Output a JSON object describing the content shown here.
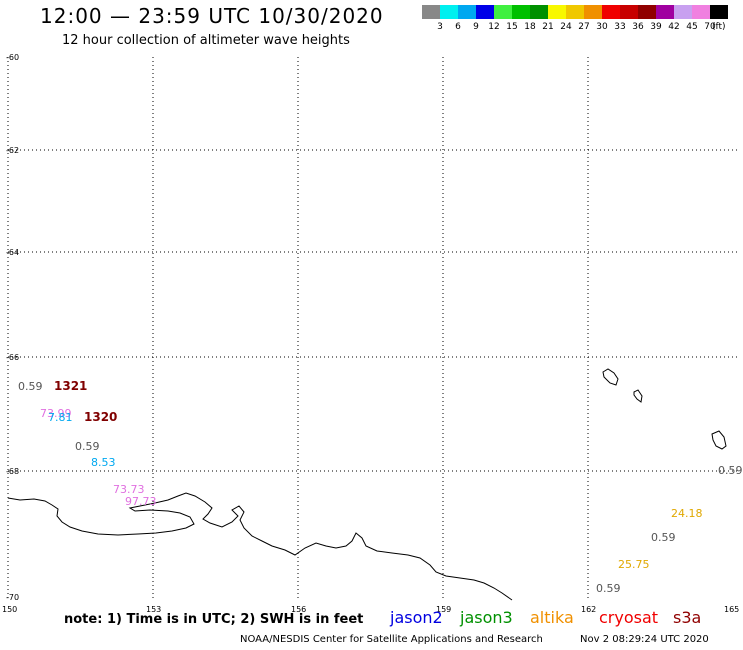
{
  "title": "12:00 — 23:59 UTC 10/30/2020",
  "subtitle": "12 hour collection of altimeter wave heights",
  "legend": {
    "unit": "(ft)",
    "swatches": [
      {
        "label": "3",
        "color": "#888888"
      },
      {
        "label": "6",
        "color": "#00f0f0"
      },
      {
        "label": "9",
        "color": "#00a8f0"
      },
      {
        "label": "12",
        "color": "#0000e8"
      },
      {
        "label": "15",
        "color": "#40f040"
      },
      {
        "label": "18",
        "color": "#00c000"
      },
      {
        "label": "21",
        "color": "#009000"
      },
      {
        "label": "24",
        "color": "#f8f800"
      },
      {
        "label": "27",
        "color": "#f0c800"
      },
      {
        "label": "30",
        "color": "#f09000"
      },
      {
        "label": "33",
        "color": "#f00000"
      },
      {
        "label": "36",
        "color": "#c80000"
      },
      {
        "label": "39",
        "color": "#900000"
      },
      {
        "label": "42",
        "color": "#a000a0"
      },
      {
        "label": "45",
        "color": "#c8a0f0"
      },
      {
        "label": "70",
        "color": "#f080e0"
      },
      {
        "label": "",
        "color": "#000000"
      }
    ]
  },
  "axes": {
    "lat_labels": [
      "-60",
      "-62",
      "-64",
      "-66",
      "-68",
      "-70"
    ],
    "lon_labels": [
      "150",
      "153",
      "156",
      "159",
      "162",
      "165"
    ]
  },
  "observations": [
    {
      "text": "0.59",
      "color": "#555555"
    },
    {
      "text": "1321",
      "color": "#800000"
    },
    {
      "text": "73.99",
      "color": "#e070e0"
    },
    {
      "text": "7.81",
      "color": "#00a8f0"
    },
    {
      "text": "1320",
      "color": "#800000"
    },
    {
      "text": "0.59",
      "color": "#555555"
    },
    {
      "text": "8.53",
      "color": "#00a8f0"
    },
    {
      "text": "73.73",
      "color": "#e070e0"
    },
    {
      "text": "97.73",
      "color": "#e070e0"
    },
    {
      "text": "0.59",
      "color": "#555555"
    },
    {
      "text": "24.18",
      "color": "#e0a800"
    },
    {
      "text": "0.59",
      "color": "#555555"
    },
    {
      "text": "25.75",
      "color": "#e0a800"
    },
    {
      "text": "0.59",
      "color": "#555555"
    }
  ],
  "note": "note: 1) Time is in UTC; 2) SWH is in feet",
  "satellites": [
    {
      "name": "jason2",
      "color": "#0000e0"
    },
    {
      "name": "jason3",
      "color": "#009000"
    },
    {
      "name": "altika",
      "color": "#f09000"
    },
    {
      "name": "cryosat",
      "color": "#f00000"
    },
    {
      "name": "s3a",
      "color": "#900000"
    }
  ],
  "credit": "NOAA/NESDIS Center for Satellite Applications and Research",
  "timestamp": "Nov  2 08:29:24 UTC 2020"
}
